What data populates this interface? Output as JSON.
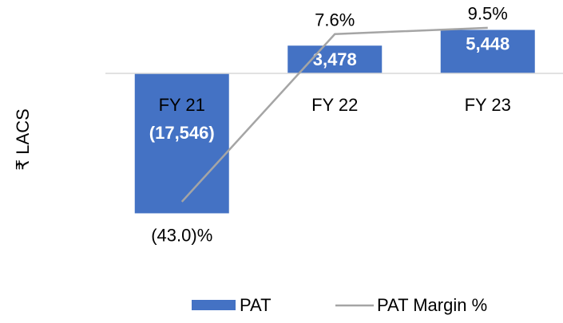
{
  "chart_data": {
    "type": "bar-line",
    "y_label": "₹ LACS",
    "categories": [
      "FY 21",
      "FY 22",
      "FY 23"
    ],
    "series": [
      {
        "name": "PAT",
        "type": "bar",
        "color": "#4472c4",
        "values": [
          -17546,
          3478,
          5448
        ],
        "value_labels": [
          "(17,546)",
          "3,478",
          "5,448"
        ]
      },
      {
        "name": "PAT Margin %",
        "type": "line",
        "axis": "y2",
        "color": "#a5a5a5",
        "values": [
          -43.0,
          7.6,
          9.5
        ],
        "value_labels": [
          "(43.0)%",
          "7.6%",
          "9.5%"
        ]
      }
    ],
    "ylim": [
      -19000,
      8000
    ],
    "y2lim": [
      -50,
      15
    ],
    "legend": "bottom"
  }
}
